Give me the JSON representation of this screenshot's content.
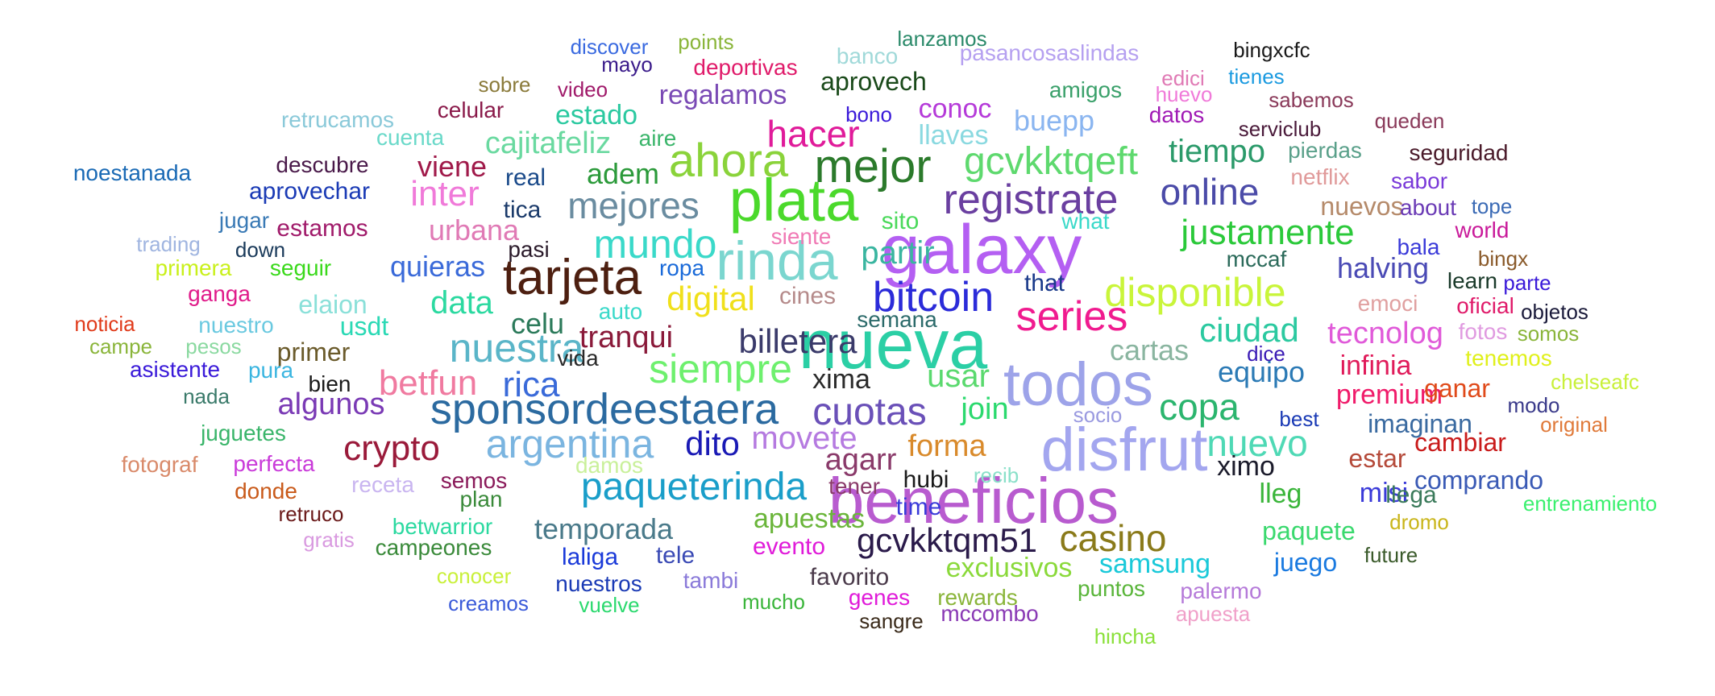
{
  "words": [
    {
      "text": "galaxy",
      "weight": 95,
      "color": "#b45ff2"
    },
    {
      "text": "nueva",
      "weight": 92,
      "color": "#2bcfa5"
    },
    {
      "text": "beneficios",
      "weight": 88,
      "color": "#b85bcf"
    },
    {
      "text": "disfrut",
      "weight": 86,
      "color": "#a3a6ef"
    },
    {
      "text": "todos",
      "weight": 86,
      "color": "#9da3e9"
    },
    {
      "text": "plata",
      "weight": 84,
      "color": "#4bd92b"
    },
    {
      "text": "rinda",
      "weight": 78,
      "color": "#7bd6cf"
    },
    {
      "text": "tarjeta",
      "weight": 72,
      "color": "#4d1f10"
    },
    {
      "text": "ahora",
      "weight": 70,
      "color": "#8ad33a"
    },
    {
      "text": "mejor",
      "weight": 68,
      "color": "#2b7a2b"
    },
    {
      "text": "sponsordeestaera",
      "weight": 66,
      "color": "#2b6aa0"
    },
    {
      "text": "registrate",
      "weight": 64,
      "color": "#6a3fa0"
    },
    {
      "text": "series",
      "weight": 63,
      "color": "#f01b8f"
    },
    {
      "text": "bitcoin",
      "weight": 62,
      "color": "#2b2bd9"
    },
    {
      "text": "disponible",
      "weight": 61,
      "color": "#c9f53a"
    },
    {
      "text": "siempre",
      "weight": 60,
      "color": "#6ef06e"
    },
    {
      "text": "nuestra",
      "weight": 58,
      "color": "#5ab5c8"
    },
    {
      "text": "mundo",
      "weight": 58,
      "color": "#3ad9c9"
    },
    {
      "text": "argentina",
      "weight": 58,
      "color": "#7bb5e0"
    },
    {
      "text": "paqueterinda",
      "weight": 56,
      "color": "#1a9ec9"
    },
    {
      "text": "gcvkktqeft",
      "weight": 56,
      "color": "#5ed96e"
    },
    {
      "text": "cuotas",
      "weight": 54,
      "color": "#6a50b8"
    },
    {
      "text": "nuevo",
      "weight": 54,
      "color": "#4fd9b5"
    },
    {
      "text": "mejores",
      "weight": 52,
      "color": "#6a8ca0"
    },
    {
      "text": "online",
      "weight": 52,
      "color": "#4b4ba8"
    },
    {
      "text": "casino",
      "weight": 52,
      "color": "#8a7a1a"
    },
    {
      "text": "justamente",
      "weight": 50,
      "color": "#2bc93a"
    },
    {
      "text": "hacer",
      "weight": 50,
      "color": "#e01b9a"
    },
    {
      "text": "copa",
      "weight": 50,
      "color": "#2bb56e"
    },
    {
      "text": "ciudad",
      "weight": 48,
      "color": "#2bc9a0"
    },
    {
      "text": "gcvkktqm51",
      "weight": 48,
      "color": "#2a1a4a"
    },
    {
      "text": "rica",
      "weight": 48,
      "color": "#3a6ad9"
    },
    {
      "text": "digital",
      "weight": 46,
      "color": "#f0e01b"
    },
    {
      "text": "billetera",
      "weight": 46,
      "color": "#3a3a6a"
    },
    {
      "text": "inter",
      "weight": 46,
      "color": "#f07ad9"
    },
    {
      "text": "crypto",
      "weight": 46,
      "color": "#9a1a3a"
    },
    {
      "text": "betfun",
      "weight": 46,
      "color": "#f07aa0"
    },
    {
      "text": "tiempo",
      "weight": 44,
      "color": "#2b9a6a"
    },
    {
      "text": "partir",
      "weight": 44,
      "color": "#3ab5a0"
    },
    {
      "text": "dito",
      "weight": 44,
      "color": "#1a1ab5"
    },
    {
      "text": "movete",
      "weight": 44,
      "color": "#b57ae0"
    },
    {
      "text": "usar",
      "weight": 44,
      "color": "#5ad96e"
    },
    {
      "text": "forma",
      "weight": 42,
      "color": "#d98a2b"
    },
    {
      "text": "agarr",
      "weight": 42,
      "color": "#8a3a6a"
    },
    {
      "text": "data",
      "weight": 42,
      "color": "#2bd9a0"
    },
    {
      "text": "tecnolog",
      "weight": 42,
      "color": "#e05ad9"
    },
    {
      "text": "cajitafeliz",
      "weight": 42,
      "color": "#6ad9a0"
    },
    {
      "text": "temporada",
      "weight": 40,
      "color": "#4a7a8a"
    },
    {
      "text": "tranqui",
      "weight": 40,
      "color": "#8a1a3a"
    },
    {
      "text": "algunos",
      "weight": 40,
      "color": "#7a3ab5"
    },
    {
      "text": "adem",
      "weight": 40,
      "color": "#2b9a3a"
    },
    {
      "text": "equipo",
      "weight": 40,
      "color": "#2b7ab5"
    },
    {
      "text": "join",
      "weight": 40,
      "color": "#2bd96e"
    },
    {
      "text": "cartas",
      "weight": 40,
      "color": "#8ab5a0"
    },
    {
      "text": "urbana",
      "weight": 38,
      "color": "#e07ab5"
    },
    {
      "text": "viene",
      "weight": 38,
      "color": "#a01a4a"
    },
    {
      "text": "quieras",
      "weight": 38,
      "color": "#3a6ad9"
    },
    {
      "text": "halving",
      "weight": 38,
      "color": "#4a4ab5"
    },
    {
      "text": "celu",
      "weight": 38,
      "color": "#2b7a5a"
    },
    {
      "text": "samsung",
      "weight": 38,
      "color": "#1ac9d9"
    },
    {
      "text": "exclusivos",
      "weight": 38,
      "color": "#8ad93a"
    },
    {
      "text": "apuestas",
      "weight": 38,
      "color": "#6ab53a"
    },
    {
      "text": "premium",
      "weight": 38,
      "color": "#f01b6a"
    },
    {
      "text": "infinia",
      "weight": 38,
      "color": "#e01b5a"
    },
    {
      "text": "misi",
      "weight": 38,
      "color": "#3a3ad9"
    },
    {
      "text": "estado",
      "weight": 38,
      "color": "#2bc9a0"
    },
    {
      "text": "regalamos",
      "weight": 38,
      "color": "#7a4ab5"
    },
    {
      "text": "buepp",
      "weight": 38,
      "color": "#8ab5f0"
    },
    {
      "text": "conoc",
      "weight": 38,
      "color": "#b53ad9"
    },
    {
      "text": "llaves",
      "weight": 38,
      "color": "#8ad9e0"
    },
    {
      "text": "aprovech",
      "weight": 36,
      "color": "#1a4a1a"
    },
    {
      "text": "imaginan",
      "weight": 36,
      "color": "#3a6aa0"
    },
    {
      "text": "nuevos",
      "weight": 36,
      "color": "#b58a6a"
    },
    {
      "text": "ganar",
      "weight": 36,
      "color": "#e04a1a"
    },
    {
      "text": "estar",
      "weight": 36,
      "color": "#b54a3a"
    },
    {
      "text": "cambiar",
      "weight": 36,
      "color": "#c91a1a"
    },
    {
      "text": "comprando",
      "weight": 36,
      "color": "#3a5ab5"
    },
    {
      "text": "paquete",
      "weight": 36,
      "color": "#3ad96e"
    },
    {
      "text": "juego",
      "weight": 36,
      "color": "#1a7ae0"
    },
    {
      "text": "ximo",
      "weight": 36,
      "color": "#1a1a2a"
    },
    {
      "text": "lleg",
      "weight": 36,
      "color": "#3ab53a"
    },
    {
      "text": "xima",
      "weight": 36,
      "color": "#2a2a2a"
    },
    {
      "text": "elaion",
      "weight": 36,
      "color": "#8ae0d9"
    },
    {
      "text": "usdt",
      "weight": 36,
      "color": "#2bd9b5"
    },
    {
      "text": "primer",
      "weight": 36,
      "color": "#6a5a2a"
    },
    {
      "text": "estamos",
      "weight": 34,
      "color": "#a01a6a"
    },
    {
      "text": "aprovechar",
      "weight": 34,
      "color": "#1a3ab5"
    },
    {
      "text": "descubre",
      "weight": 34,
      "color": "#4a1a4a"
    },
    {
      "text": "semos",
      "weight": 34,
      "color": "#8a1a5a"
    },
    {
      "text": "cines",
      "weight": 34,
      "color": "#b58a8a"
    },
    {
      "text": "tele",
      "weight": 34,
      "color": "#3a4ab5"
    },
    {
      "text": "laliga",
      "weight": 34,
      "color": "#1a3ad9"
    },
    {
      "text": "nuestros",
      "weight": 34,
      "color": "#1a3ab5"
    },
    {
      "text": "evento",
      "weight": 34,
      "color": "#e01bd9"
    },
    {
      "text": "time",
      "weight": 34,
      "color": "#3a3ad9"
    },
    {
      "text": "hubi",
      "weight": 34,
      "color": "#1a1a1a"
    },
    {
      "text": "favorito",
      "weight": 34,
      "color": "#4a3a4a"
    },
    {
      "text": "betwarrior",
      "weight": 34,
      "color": "#2bd9a0"
    },
    {
      "text": "tambi",
      "weight": 34,
      "color": "#8a7ad9"
    },
    {
      "text": "perfecta",
      "weight": 34,
      "color": "#c93ad9"
    },
    {
      "text": "tica",
      "weight": 34,
      "color": "#1a3a6a"
    },
    {
      "text": "real",
      "weight": 32,
      "color": "#1a4a8a"
    },
    {
      "text": "cuenta",
      "weight": 32,
      "color": "#6ad9c9"
    },
    {
      "text": "celular",
      "weight": 32,
      "color": "#8a1a4a"
    },
    {
      "text": "aire",
      "weight": 32,
      "color": "#3ab56a"
    },
    {
      "text": "sito",
      "weight": 32,
      "color": "#4ad95a"
    },
    {
      "text": "siente",
      "weight": 32,
      "color": "#f07ab5"
    },
    {
      "text": "what",
      "weight": 32,
      "color": "#3ad9c9"
    },
    {
      "text": "that",
      "weight": 32,
      "color": "#1a3a8a"
    },
    {
      "text": "semana",
      "weight": 32,
      "color": "#2b6a6a"
    },
    {
      "text": "vida",
      "weight": 32,
      "color": "#2a2a2a"
    },
    {
      "text": "ropa",
      "weight": 32,
      "color": "#1a6ad9"
    },
    {
      "text": "pasi",
      "weight": 32,
      "color": "#2a1a2a"
    },
    {
      "text": "auto",
      "weight": 32,
      "color": "#3ad9c9"
    },
    {
      "text": "socio",
      "weight": 32,
      "color": "#9a9ae0"
    },
    {
      "text": "dice",
      "weight": 32,
      "color": "#3a1ab5"
    },
    {
      "text": "mccaf",
      "weight": 32,
      "color": "#2b6a5a"
    },
    {
      "text": "learn",
      "weight": 32,
      "color": "#1a3a2a"
    },
    {
      "text": "bala",
      "weight": 32,
      "color": "#3a3ad9"
    },
    {
      "text": "world",
      "weight": 32,
      "color": "#c91a9a"
    },
    {
      "text": "about",
      "weight": 32,
      "color": "#6a3ab5"
    },
    {
      "text": "sabor",
      "weight": 32,
      "color": "#7a3ad9"
    },
    {
      "text": "tope",
      "weight": 32,
      "color": "#3a6ab5"
    },
    {
      "text": "bingx",
      "weight": 32,
      "color": "#8a5a2a"
    },
    {
      "text": "parte",
      "weight": 32,
      "color": "#3a1ad9"
    },
    {
      "text": "objetos",
      "weight": 32,
      "color": "#1a1a3a"
    },
    {
      "text": "emoci",
      "weight": 32,
      "color": "#e0a0a0"
    },
    {
      "text": "oficial",
      "weight": 32,
      "color": "#e01b6a"
    },
    {
      "text": "fotos",
      "weight": 32,
      "color": "#e09ae0"
    },
    {
      "text": "somos",
      "weight": 32,
      "color": "#8ab53a"
    },
    {
      "text": "tenemos",
      "weight": 32,
      "color": "#e0f01b"
    },
    {
      "text": "chelseafc",
      "weight": 32,
      "color": "#c9f03a"
    },
    {
      "text": "modo",
      "weight": 32,
      "color": "#3a3a8a"
    },
    {
      "text": "original",
      "weight": 32,
      "color": "#e07a3a"
    },
    {
      "text": "best",
      "weight": 32,
      "color": "#1a3ab5"
    },
    {
      "text": "llega",
      "weight": 32,
      "color": "#3a7a5a"
    },
    {
      "text": "entrenamiento",
      "weight": 32,
      "color": "#3af06e"
    },
    {
      "text": "dromo",
      "weight": 32,
      "color": "#c9b51a"
    },
    {
      "text": "future",
      "weight": 32,
      "color": "#3a5a2a"
    },
    {
      "text": "puntos",
      "weight": 32,
      "color": "#5ab53a"
    },
    {
      "text": "palermo",
      "weight": 32,
      "color": "#b57ad9"
    },
    {
      "text": "apuesta",
      "weight": 32,
      "color": "#f0a0c9"
    },
    {
      "text": "hincha",
      "weight": 32,
      "color": "#8ae03a"
    },
    {
      "text": "rewards",
      "weight": 32,
      "color": "#8ab53a"
    },
    {
      "text": "genes",
      "weight": 32,
      "color": "#e01bd9"
    },
    {
      "text": "mccombo",
      "weight": 32,
      "color": "#8a3ab5"
    },
    {
      "text": "sangre",
      "weight": 32,
      "color": "#3a2a1a"
    },
    {
      "text": "mucho",
      "weight": 32,
      "color": "#3ab53a"
    },
    {
      "text": "vuelve",
      "weight": 30,
      "color": "#2bd96e"
    },
    {
      "text": "creamos",
      "weight": 30,
      "color": "#3a5ad9"
    },
    {
      "text": "conocer",
      "weight": 30,
      "color": "#c9f03a"
    },
    {
      "text": "campeones",
      "weight": 30,
      "color": "#3a8a3a"
    },
    {
      "text": "gratis",
      "weight": 30,
      "color": "#d99ae0"
    },
    {
      "text": "retruco",
      "weight": 30,
      "color": "#6a1a1a"
    },
    {
      "text": "donde",
      "weight": 30,
      "color": "#c95a1a"
    },
    {
      "text": "fotograf",
      "weight": 30,
      "color": "#d98a6a"
    },
    {
      "text": "juguetes",
      "weight": 30,
      "color": "#3ab56a"
    },
    {
      "text": "nada",
      "weight": 30,
      "color": "#3a7a6a"
    },
    {
      "text": "asistente",
      "weight": 30,
      "color": "#3a1ad9"
    },
    {
      "text": "pura",
      "weight": 30,
      "color": "#3ab5e0"
    },
    {
      "text": "bien",
      "weight": 30,
      "color": "#1a1a1a"
    },
    {
      "text": "receta",
      "weight": 30,
      "color": "#c9b5f0"
    },
    {
      "text": "plan",
      "weight": 30,
      "color": "#3a8a3a"
    },
    {
      "text": "damos",
      "weight": 30,
      "color": "#c9f09a"
    },
    {
      "text": "recib",
      "weight": 30,
      "color": "#8ae0c9"
    },
    {
      "text": "tener",
      "weight": 30,
      "color": "#8a3a6a"
    },
    {
      "text": "nuestro",
      "weight": 30,
      "color": "#6ac9e0"
    },
    {
      "text": "noticia",
      "weight": 30,
      "color": "#e03a1a"
    },
    {
      "text": "campe",
      "weight": 30,
      "color": "#8ab53a"
    },
    {
      "text": "pesos",
      "weight": 30,
      "color": "#8ad9a0"
    },
    {
      "text": "ganga",
      "weight": 30,
      "color": "#e01b8a"
    },
    {
      "text": "primera",
      "weight": 30,
      "color": "#c9f01b"
    },
    {
      "text": "seguir",
      "weight": 30,
      "color": "#3ad91b"
    },
    {
      "text": "trading",
      "weight": 30,
      "color": "#a0b5e0"
    },
    {
      "text": "down",
      "weight": 30,
      "color": "#1a3a5a"
    },
    {
      "text": "jugar",
      "weight": 30,
      "color": "#3a7ab5"
    },
    {
      "text": "noestanada",
      "weight": 30,
      "color": "#1a6ab5"
    },
    {
      "text": "retrucamos",
      "weight": 30,
      "color": "#8ac9d9"
    },
    {
      "text": "sobre",
      "weight": 30,
      "color": "#8a7a3a"
    },
    {
      "text": "video",
      "weight": 30,
      "color": "#a01a6a"
    },
    {
      "text": "mayo",
      "weight": 30,
      "color": "#3a1a8a"
    },
    {
      "text": "discover",
      "weight": 30,
      "color": "#3a6ae0"
    },
    {
      "text": "points",
      "weight": 30,
      "color": "#8ab53a"
    },
    {
      "text": "deportivas",
      "weight": 30,
      "color": "#e01b6a"
    },
    {
      "text": "banco",
      "weight": 30,
      "color": "#a0d9d9"
    },
    {
      "text": "lanzamos",
      "weight": 30,
      "color": "#2b8a6a"
    },
    {
      "text": "pasancosaslindas",
      "weight": 30,
      "color": "#b5a0f0"
    },
    {
      "text": "bono",
      "weight": 30,
      "color": "#3a1ad9"
    },
    {
      "text": "amigos",
      "weight": 30,
      "color": "#3aa06a"
    },
    {
      "text": "bingxcfc",
      "weight": 30,
      "color": "#1a1a1a"
    },
    {
      "text": "edici",
      "weight": 30,
      "color": "#e07ab5"
    },
    {
      "text": "tienes",
      "weight": 30,
      "color": "#1a9ae0"
    },
    {
      "text": "huevo",
      "weight": 30,
      "color": "#f07ad9"
    },
    {
      "text": "sabemos",
      "weight": 30,
      "color": "#8a3a5a"
    },
    {
      "text": "datos",
      "weight": 30,
      "color": "#a01ab5"
    },
    {
      "text": "serviclub",
      "weight": 30,
      "color": "#4a1a3a"
    },
    {
      "text": "queden",
      "weight": 30,
      "color": "#8a3a5a"
    },
    {
      "text": "pierdas",
      "weight": 30,
      "color": "#5aa08a"
    },
    {
      "text": "seguridad",
      "weight": 30,
      "color": "#4a1a2a"
    },
    {
      "text": "netflix",
      "weight": 30,
      "color": "#e09a9a"
    }
  ]
}
